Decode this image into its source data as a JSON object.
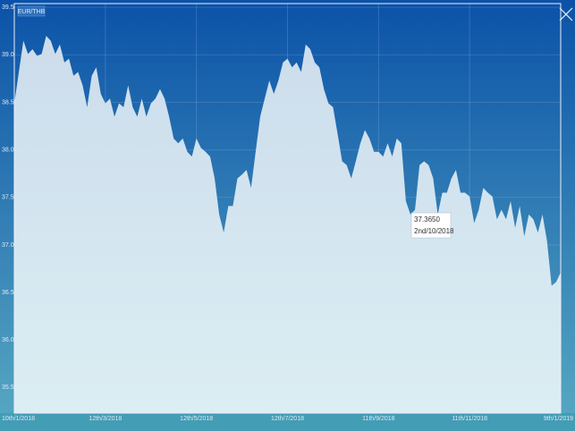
{
  "chart_data": {
    "type": "area",
    "title": "EUR/THB",
    "annotations": [
      "37.3650",
      "2nd/10/2018"
    ],
    "categories": [
      "10th/1/2018",
      null,
      null,
      null,
      null,
      null,
      null,
      null,
      null,
      null,
      null,
      null,
      null,
      null,
      null,
      null,
      null,
      null,
      null,
      null,
      "12th/3/2018",
      null,
      null,
      null,
      null,
      null,
      null,
      null,
      null,
      null,
      null,
      null,
      null,
      null,
      null,
      null,
      null,
      null,
      null,
      null,
      "12th/5/2018",
      null,
      null,
      null,
      null,
      null,
      null,
      null,
      null,
      null,
      null,
      null,
      null,
      null,
      null,
      null,
      null,
      null,
      null,
      null,
      "12th/7/2018",
      null,
      null,
      null,
      null,
      null,
      null,
      null,
      null,
      null,
      null,
      null,
      null,
      null,
      null,
      null,
      null,
      null,
      null,
      null,
      "11th/9/2018",
      null,
      null,
      null,
      null,
      null,
      null,
      null,
      null,
      null,
      null,
      null,
      null,
      null,
      null,
      null,
      null,
      null,
      null,
      null,
      "11th/11/2018",
      null,
      null,
      null,
      null,
      null,
      null,
      null,
      null,
      null,
      null,
      null,
      null,
      null,
      null,
      null,
      null,
      null,
      null,
      null,
      "9th/1/2019"
    ],
    "values": [
      38.49,
      38.82,
      39.15,
      39.01,
      39.06,
      38.99,
      39.01,
      39.2,
      39.15,
      39.01,
      39.11,
      38.92,
      38.96,
      38.78,
      38.82,
      38.68,
      38.45,
      38.78,
      38.87,
      38.59,
      38.49,
      38.54,
      38.35,
      38.49,
      38.45,
      38.68,
      38.45,
      38.35,
      38.54,
      38.35,
      38.49,
      38.54,
      38.64,
      38.54,
      38.35,
      38.12,
      38.07,
      38.12,
      37.98,
      37.93,
      38.12,
      38.02,
      37.98,
      37.93,
      37.7,
      37.32,
      37.13,
      37.41,
      37.41,
      37.7,
      37.74,
      37.79,
      37.6,
      37.98,
      38.35,
      38.54,
      38.73,
      38.59,
      38.73,
      38.92,
      38.96,
      38.87,
      38.92,
      38.82,
      39.11,
      39.06,
      38.92,
      38.87,
      38.64,
      38.49,
      38.45,
      38.17,
      37.88,
      37.84,
      37.7,
      37.88,
      38.07,
      38.21,
      38.12,
      37.98,
      37.98,
      37.93,
      38.07,
      37.93,
      38.12,
      38.07,
      37.46,
      37.32,
      37.37,
      37.84,
      37.88,
      37.84,
      37.7,
      37.32,
      37.55,
      37.55,
      37.7,
      37.79,
      37.55,
      37.55,
      37.51,
      37.23,
      37.37,
      37.6,
      37.55,
      37.51,
      37.27,
      37.37,
      37.27,
      37.46,
      37.18,
      37.41,
      37.09,
      37.32,
      37.27,
      37.13,
      37.32,
      37.04,
      36.57,
      36.61,
      36.71
    ],
    "color": "#dce9f3",
    "ylim": [
      35.23,
      39.54
    ],
    "yticks": [
      {
        "value": 35.5,
        "label": "35.5"
      },
      {
        "value": 36,
        "label": "36.0"
      },
      36.5,
      {
        "value": 37,
        "label": "37.0"
      },
      37.5,
      {
        "value": 38,
        "label": "38.0"
      },
      38.5,
      {
        "value": 39,
        "label": "39.0"
      },
      39.5
    ],
    "grid": true
  }
}
